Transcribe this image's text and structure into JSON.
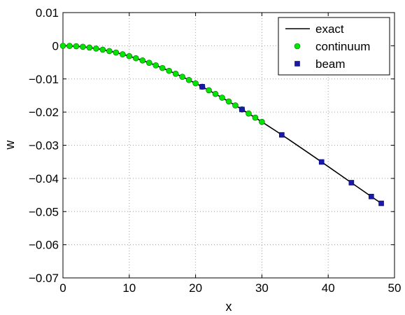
{
  "chart_data": {
    "type": "line",
    "xlabel": "x",
    "ylabel": "w",
    "xlim": [
      0,
      50
    ],
    "ylim": [
      -0.07,
      0.01
    ],
    "xticks": [
      "0",
      "10",
      "20",
      "30",
      "40",
      "50"
    ],
    "yticks": [
      "0.01",
      "0",
      "−0.01",
      "−0.02",
      "−0.03",
      "−0.04",
      "−0.05",
      "−0.06",
      "−0.07"
    ],
    "grid": true,
    "legend_position": "top-right",
    "series": [
      {
        "name": "exact",
        "style": "line",
        "color": "#000000",
        "x": [
          0,
          2,
          4,
          6,
          8,
          10,
          12,
          14,
          16,
          18,
          20,
          22,
          24,
          26,
          28,
          30,
          32,
          34,
          36,
          38,
          40,
          42,
          44,
          46,
          48
        ],
        "y": [
          0,
          -0.00014,
          -0.00054,
          -0.00118,
          -0.00205,
          -0.00313,
          -0.00442,
          -0.0059,
          -0.00755,
          -0.00936,
          -0.01132,
          -0.01342,
          -0.01565,
          -0.01799,
          -0.02043,
          -0.02295,
          -0.02554,
          -0.0282,
          -0.03091,
          -0.03366,
          -0.03643,
          -0.03921,
          -0.042,
          -0.04477,
          -0.04752
        ]
      },
      {
        "name": "continuum",
        "style": "marker-circle",
        "color": "#00e600",
        "x": [
          0,
          1,
          2,
          3,
          4,
          5,
          6,
          7,
          8,
          9,
          10,
          11,
          12,
          13,
          14,
          15,
          16,
          17,
          18,
          19,
          20,
          21,
          22,
          23,
          24,
          25,
          26,
          27,
          28,
          29,
          30
        ],
        "y": [
          0,
          -4e-05,
          -0.00014,
          -0.00031,
          -0.00054,
          -0.00084,
          -0.00118,
          -0.00159,
          -0.00205,
          -0.00257,
          -0.00313,
          -0.00375,
          -0.00442,
          -0.00513,
          -0.0059,
          -0.0067,
          -0.00755,
          -0.00843,
          -0.00936,
          -0.01032,
          -0.01132,
          -0.01235,
          -0.01342,
          -0.01452,
          -0.01565,
          -0.0168,
          -0.01799,
          -0.0192,
          -0.02043,
          -0.02168,
          -0.02295
        ]
      },
      {
        "name": "beam",
        "style": "marker-square",
        "color": "#1a1aa6",
        "x": [
          21,
          27,
          33,
          39,
          43.5,
          46.5,
          48
        ],
        "y": [
          -0.01235,
          -0.0192,
          -0.02687,
          -0.03504,
          -0.04129,
          -0.04546,
          -0.04752
        ]
      }
    ]
  }
}
